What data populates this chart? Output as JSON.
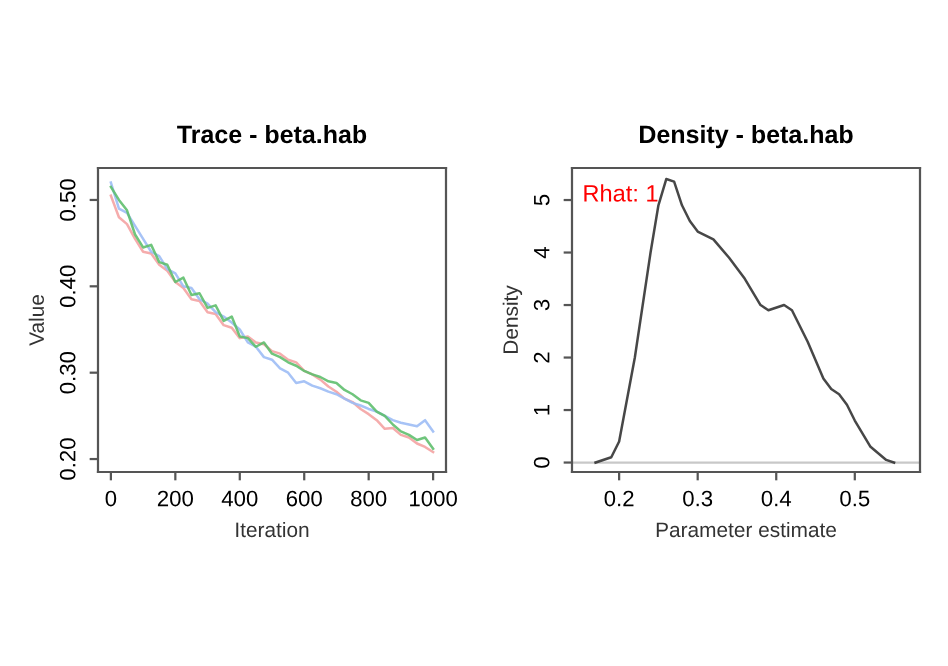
{
  "chart_data": [
    {
      "type": "line",
      "title": "Trace - beta.hab",
      "xlabel": "Iteration",
      "ylabel": "Value",
      "x": [
        0,
        25,
        50,
        75,
        100,
        125,
        150,
        175,
        200,
        225,
        250,
        275,
        300,
        325,
        350,
        375,
        400,
        425,
        450,
        475,
        500,
        525,
        550,
        575,
        600,
        625,
        650,
        675,
        700,
        725,
        750,
        775,
        800,
        825,
        850,
        875,
        900,
        925,
        950,
        975,
        1000
      ],
      "series": [
        {
          "color": "#f4a3a3",
          "values": [
            0.505,
            0.48,
            0.472,
            0.455,
            0.44,
            0.438,
            0.425,
            0.418,
            0.405,
            0.398,
            0.385,
            0.383,
            0.37,
            0.368,
            0.355,
            0.352,
            0.34,
            0.342,
            0.335,
            0.333,
            0.325,
            0.322,
            0.315,
            0.312,
            0.302,
            0.298,
            0.292,
            0.284,
            0.278,
            0.27,
            0.266,
            0.258,
            0.252,
            0.245,
            0.235,
            0.236,
            0.228,
            0.225,
            0.218,
            0.214,
            0.208
          ]
        },
        {
          "color": "#9dbdf5",
          "values": [
            0.52,
            0.49,
            0.485,
            0.47,
            0.455,
            0.44,
            0.435,
            0.42,
            0.415,
            0.4,
            0.398,
            0.385,
            0.38,
            0.37,
            0.365,
            0.358,
            0.35,
            0.335,
            0.33,
            0.318,
            0.315,
            0.305,
            0.3,
            0.288,
            0.29,
            0.285,
            0.282,
            0.278,
            0.275,
            0.27,
            0.265,
            0.262,
            0.258,
            0.255,
            0.25,
            0.245,
            0.242,
            0.24,
            0.238,
            0.245,
            0.232
          ]
        },
        {
          "color": "#5fbf6e",
          "values": [
            0.515,
            0.5,
            0.488,
            0.46,
            0.445,
            0.448,
            0.428,
            0.425,
            0.405,
            0.41,
            0.39,
            0.392,
            0.375,
            0.378,
            0.36,
            0.365,
            0.342,
            0.34,
            0.33,
            0.335,
            0.322,
            0.318,
            0.312,
            0.308,
            0.302,
            0.298,
            0.295,
            0.29,
            0.288,
            0.28,
            0.275,
            0.268,
            0.265,
            0.255,
            0.25,
            0.24,
            0.232,
            0.228,
            0.222,
            0.225,
            0.212
          ]
        }
      ],
      "xlim": [
        -40,
        1040
      ],
      "ylim": [
        0.185,
        0.537
      ],
      "xticks": [
        0,
        200,
        400,
        600,
        800,
        1000
      ],
      "yticks": [
        {
          "value": 0.2,
          "label": "0.20"
        },
        {
          "value": 0.3,
          "label": "0.30"
        },
        {
          "value": 0.4,
          "label": "0.40"
        },
        {
          "value": 0.5,
          "label": "0.50"
        }
      ]
    },
    {
      "type": "line",
      "title": "Density - beta.hab",
      "xlabel": "Parameter estimate",
      "ylabel": "Density",
      "annotations": [
        "Rhat: 1"
      ],
      "x": [
        0.17,
        0.19,
        0.2,
        0.22,
        0.24,
        0.25,
        0.26,
        0.27,
        0.28,
        0.29,
        0.3,
        0.32,
        0.34,
        0.36,
        0.38,
        0.39,
        0.41,
        0.42,
        0.44,
        0.46,
        0.47,
        0.48,
        0.49,
        0.5,
        0.52,
        0.54,
        0.55
      ],
      "series": [
        {
          "color": "#333333",
          "values": [
            0,
            0.1,
            0.4,
            2.0,
            4.0,
            4.9,
            5.4,
            5.35,
            4.9,
            4.6,
            4.4,
            4.25,
            3.9,
            3.5,
            3.0,
            2.9,
            3.0,
            2.9,
            2.3,
            1.6,
            1.4,
            1.3,
            1.1,
            0.8,
            0.3,
            0.05,
            0
          ]
        }
      ],
      "ref_lines": [
        {
          "axis": "y",
          "value": 0,
          "color": "#c8c8c8"
        }
      ],
      "xlim": [
        0.14,
        0.583
      ],
      "ylim": [
        -0.18,
        5.61
      ],
      "xticks": [
        0.2,
        0.3,
        0.4,
        0.5
      ],
      "yticks": [
        0,
        1,
        2,
        3,
        4,
        5
      ]
    }
  ]
}
